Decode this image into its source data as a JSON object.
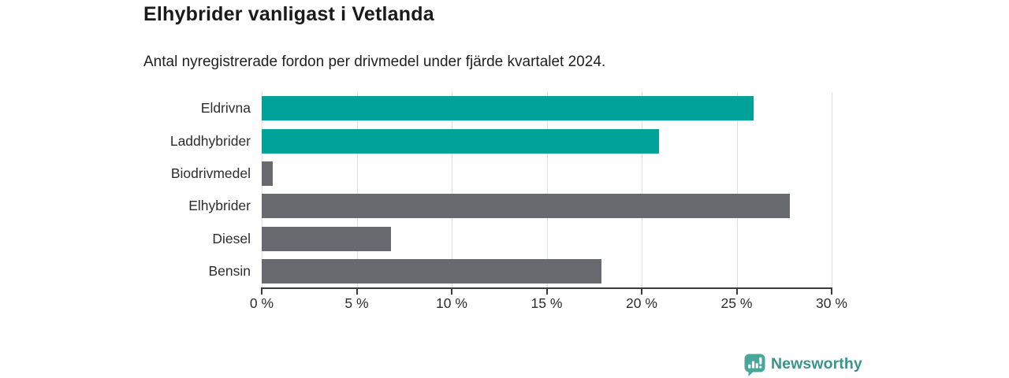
{
  "chart_data": {
    "type": "bar",
    "orientation": "horizontal",
    "title": "Elhybrider vanligast i Vetlanda",
    "subtitle": "Antal nyregistrerade fordon per drivmedel under fjärde kvartalet 2024.",
    "categories": [
      "Eldrivna",
      "Laddhybrider",
      "Biodrivmedel",
      "Elhybrider",
      "Diesel",
      "Bensin"
    ],
    "values": [
      25.9,
      20.9,
      0.6,
      27.8,
      6.8,
      17.9
    ],
    "unit": "%",
    "xlim": [
      0,
      30
    ],
    "x_tick_values": [
      0,
      5,
      10,
      15,
      20,
      25,
      30
    ],
    "x_tick_labels": [
      "0 %",
      "5 %",
      "10 %",
      "15 %",
      "20 %",
      "25 %",
      "30 %"
    ],
    "bar_colors": [
      "#00a29a",
      "#00a29a",
      "#696970",
      "#696970",
      "#696970",
      "#696970"
    ],
    "highlight_color": "#00a29a",
    "default_color": "#696970",
    "grid": "vertical-only",
    "gridline_color": "#dfdfdf",
    "axis_color": "#3c3c3c",
    "legend": "none",
    "value_labels": "none"
  },
  "branding": {
    "logo_text": "Newsworthy",
    "logo_text_color": "#3a948c",
    "icon_color": "#47a79a",
    "icon_glyph_color": "#ffffff",
    "icon_name": "bar-chart-speech-bubble-icon"
  }
}
